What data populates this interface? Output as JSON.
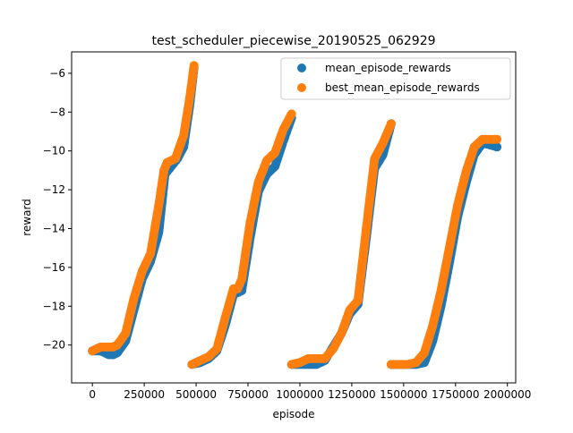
{
  "chart_data": {
    "type": "scatter",
    "title": "test_scheduler_piecewise_20190525_062929",
    "xlabel": "episode",
    "ylabel": "reward",
    "xlim": [
      -100000,
      2040000
    ],
    "ylim": [
      -21.95,
      -4.9
    ],
    "x_ticks": [
      0,
      250000,
      500000,
      750000,
      1000000,
      1250000,
      1500000,
      1750000,
      2000000
    ],
    "x_tick_labels": [
      "0",
      "250000",
      "500000",
      "750000",
      "1000000",
      "1250000",
      "1500000",
      "1750000",
      "2000000"
    ],
    "y_ticks": [
      -20,
      -18,
      -16,
      -14,
      -12,
      -10,
      -8,
      -6
    ],
    "y_tick_labels": [
      "−20",
      "−18",
      "−16",
      "−14",
      "−12",
      "−10",
      "−8",
      "−6"
    ],
    "grid": false,
    "legend_position": "upper-right",
    "series": [
      {
        "name": "mean_episode_rewards",
        "color": "#1f77b4",
        "segments": [
          {
            "x": [
              0,
              40000,
              80000,
              100000,
              120000,
              160000,
              200000,
              240000,
              280000,
              320000,
              350000,
              380000,
              410000,
              440000,
              470000,
              490000
            ],
            "y": [
              -20.3,
              -20.3,
              -20.5,
              -20.5,
              -20.4,
              -19.8,
              -18.2,
              -16.6,
              -15.7,
              -14.2,
              -11.2,
              -10.8,
              -10.4,
              -9.8,
              -7.6,
              -5.7
            ]
          },
          {
            "x": [
              480000,
              520000,
              560000,
              600000,
              640000,
              680000,
              720000,
              760000,
              800000,
              840000,
              880000,
              920000,
              960000
            ],
            "y": [
              -21.0,
              -20.9,
              -20.7,
              -20.3,
              -19.0,
              -17.4,
              -17.2,
              -14.5,
              -12.1,
              -11.2,
              -10.8,
              -9.5,
              -8.3
            ]
          },
          {
            "x": [
              960000,
              1000000,
              1040000,
              1080000,
              1120000,
              1160000,
              1200000,
              1240000,
              1280000,
              1320000,
              1360000,
              1400000,
              1440000
            ],
            "y": [
              -21.0,
              -21.0,
              -21.0,
              -21.0,
              -20.8,
              -20.1,
              -19.4,
              -18.4,
              -17.9,
              -14.5,
              -10.9,
              -10.2,
              -8.6
            ]
          },
          {
            "x": [
              1440000,
              1480000,
              1520000,
              1560000,
              1600000,
              1640000,
              1680000,
              1720000,
              1760000,
              1800000,
              1840000,
              1880000,
              1920000,
              1950000
            ],
            "y": [
              -21.0,
              -21.0,
              -21.0,
              -21.0,
              -20.9,
              -19.8,
              -18.0,
              -15.8,
              -13.4,
              -11.7,
              -10.2,
              -9.6,
              -9.7,
              -9.8
            ]
          }
        ]
      },
      {
        "name": "best_mean_episode_rewards",
        "color": "#ff7f0e",
        "segments": [
          {
            "x": [
              0,
              20000,
              40000,
              80000,
              100000,
              120000,
              160000,
              200000,
              240000,
              280000,
              320000,
              345000,
              360000,
              400000,
              440000,
              470000,
              490000
            ],
            "y": [
              -20.3,
              -20.2,
              -20.1,
              -20.1,
              -20.1,
              -20.0,
              -19.4,
              -17.6,
              -16.2,
              -15.3,
              -12.8,
              -11.0,
              -10.6,
              -10.4,
              -9.2,
              -7.2,
              -5.6
            ]
          },
          {
            "x": [
              480000,
              520000,
              560000,
              600000,
              640000,
              680000,
              700000,
              720000,
              760000,
              800000,
              840000,
              880000,
              920000,
              960000
            ],
            "y": [
              -21.0,
              -20.8,
              -20.6,
              -20.2,
              -18.6,
              -17.1,
              -17.1,
              -16.6,
              -13.7,
              -11.6,
              -10.5,
              -10.1,
              -8.9,
              -8.1
            ]
          },
          {
            "x": [
              960000,
              1000000,
              1040000,
              1080000,
              1120000,
              1160000,
              1200000,
              1240000,
              1280000,
              1320000,
              1360000,
              1400000,
              1440000
            ],
            "y": [
              -21.0,
              -20.9,
              -20.7,
              -20.7,
              -20.7,
              -20.2,
              -19.4,
              -18.2,
              -17.7,
              -14.0,
              -10.4,
              -9.6,
              -8.6
            ]
          },
          {
            "x": [
              1440000,
              1480000,
              1520000,
              1560000,
              1600000,
              1640000,
              1680000,
              1720000,
              1760000,
              1800000,
              1840000,
              1880000,
              1920000,
              1950000
            ],
            "y": [
              -21.0,
              -21.0,
              -21.0,
              -20.9,
              -20.4,
              -19.0,
              -17.2,
              -15.0,
              -12.8,
              -11.1,
              -9.8,
              -9.4,
              -9.4,
              -9.4
            ]
          }
        ]
      }
    ]
  }
}
